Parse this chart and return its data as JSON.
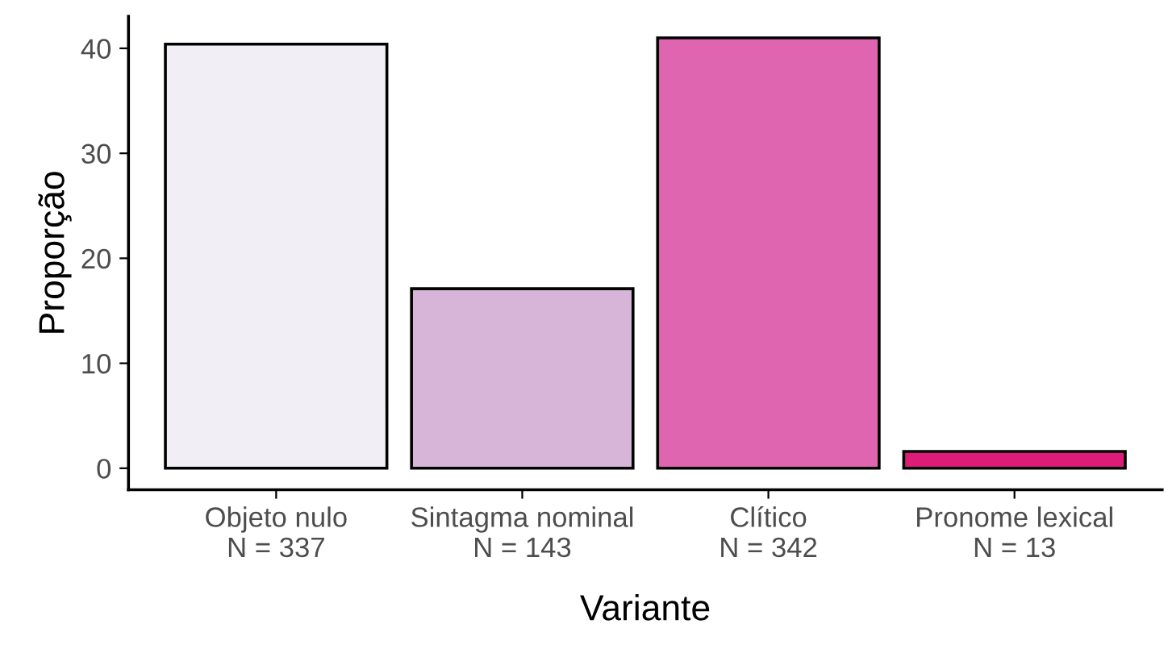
{
  "chart_data": {
    "type": "bar",
    "xlabel": "Variante",
    "ylabel": "Proporção",
    "categories": [
      "Objeto nulo\nN = 337",
      "Sintagma nominal\nN = 143",
      "Clítico\nN = 342",
      "Pronome lexical\nN = 13"
    ],
    "values": [
      40.4,
      17.1,
      41.0,
      1.6
    ],
    "colors": [
      "#f1eef6",
      "#d7b5d8",
      "#df65b0",
      "#dd1c77"
    ],
    "ylim": [
      -2.05,
      43.05
    ],
    "yticks": [
      0,
      10,
      20,
      30,
      40
    ],
    "grid": false,
    "legend": false
  }
}
